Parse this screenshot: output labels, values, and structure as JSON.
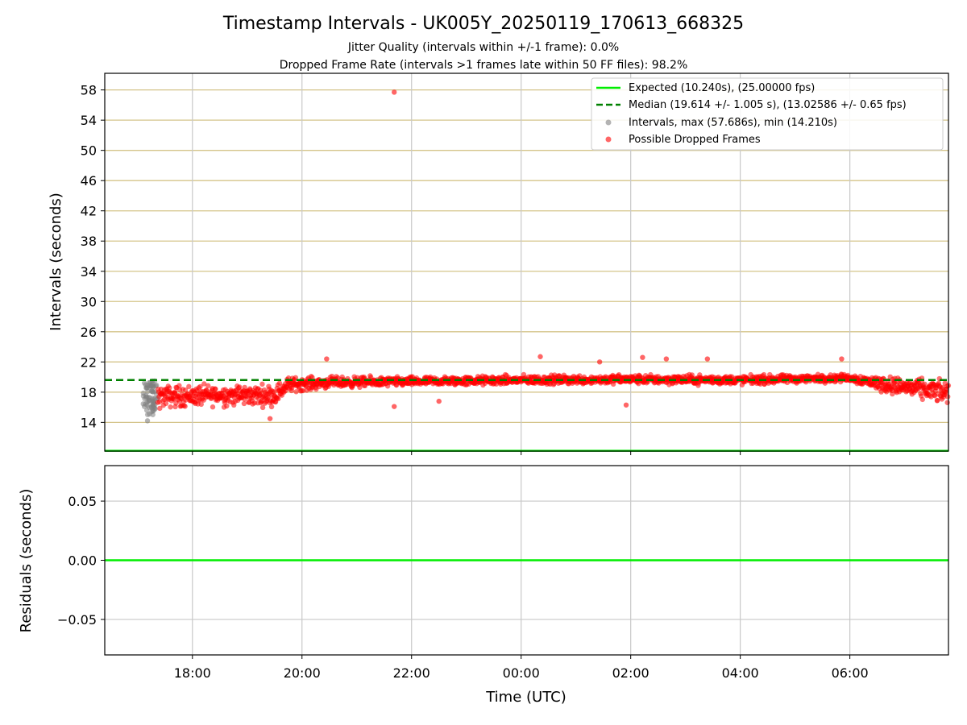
{
  "chart_data": [
    {
      "type": "scatter",
      "title": "Timestamp Intervals - UK005Y_20250119_170613_668325",
      "subtitle_lines": [
        "Jitter Quality (intervals within +/-1 frame): 0.0%",
        "Dropped Frame Rate (intervals >1 frames late within 50 FF files): 98.2%"
      ],
      "xlabel": "",
      "ylabel": "Intervals (seconds)",
      "xlim": [
        "2025-01-19 16:24",
        "2025-01-20 07:48"
      ],
      "ylim": [
        10.2,
        60.2
      ],
      "yticks": [
        14,
        18,
        22,
        26,
        30,
        34,
        38,
        42,
        46,
        50,
        54,
        58
      ],
      "xticks": [
        "18:00",
        "20:00",
        "22:00",
        "00:00",
        "02:00",
        "04:00",
        "06:00"
      ],
      "grid": true,
      "legend_position": "top-right",
      "series": [
        {
          "name": "Expected (10.240s), (25.00000 fps)",
          "kind": "hline",
          "y": 10.24,
          "color": "#00ee00",
          "style": "solid"
        },
        {
          "name": "Median (19.614 +/- 1.005 s), (13.02586 +/- 0.65 fps)",
          "kind": "hline",
          "y": 19.614,
          "color": "#008000",
          "style": "dashed"
        },
        {
          "name": "Intervals, max (57.686s), min (14.210s)",
          "kind": "scatter",
          "color": "#808080",
          "x_range": [
            "2025-01-19 17:06",
            "2025-01-19 17:22"
          ],
          "y_min": 14.21,
          "y_typical": [
            15.0,
            19.5
          ]
        },
        {
          "name": "Possible Dropped Frames",
          "kind": "scatter",
          "color": "#ff0000",
          "x_range": [
            "2025-01-19 17:22",
            "2025-01-20 07:48"
          ],
          "trend": [
            {
              "x": "2025-01-19 17:22",
              "y": 17.4,
              "spread": 1.2
            },
            {
              "x": "2025-01-19 18:30",
              "y": 17.6,
              "spread": 1.1
            },
            {
              "x": "2025-01-19 19:30",
              "y": 17.6,
              "spread": 1.1
            },
            {
              "x": "2025-01-19 19:45",
              "y": 19.0,
              "spread": 0.8
            },
            {
              "x": "2025-01-19 20:30",
              "y": 19.3,
              "spread": 0.6
            },
            {
              "x": "2025-01-19 22:00",
              "y": 19.4,
              "spread": 0.5
            },
            {
              "x": "2025-01-20 00:00",
              "y": 19.6,
              "spread": 0.5
            },
            {
              "x": "2025-01-20 02:00",
              "y": 19.7,
              "spread": 0.5
            },
            {
              "x": "2025-01-20 04:00",
              "y": 19.6,
              "spread": 0.5
            },
            {
              "x": "2025-01-20 06:00",
              "y": 19.9,
              "spread": 0.4
            },
            {
              "x": "2025-01-20 06:40",
              "y": 19.0,
              "spread": 0.9
            },
            {
              "x": "2025-01-20 07:48",
              "y": 17.9,
              "spread": 1.2
            }
          ],
          "outliers": [
            {
              "x": "2025-01-19 21:41",
              "y": 57.7
            },
            {
              "x": "2025-01-19 20:27",
              "y": 22.4
            },
            {
              "x": "2025-01-20 00:21",
              "y": 22.7
            },
            {
              "x": "2025-01-20 01:26",
              "y": 22.0
            },
            {
              "x": "2025-01-20 02:13",
              "y": 22.6
            },
            {
              "x": "2025-01-20 02:39",
              "y": 22.4
            },
            {
              "x": "2025-01-20 03:24",
              "y": 22.4
            },
            {
              "x": "2025-01-20 05:51",
              "y": 22.4
            },
            {
              "x": "2025-01-19 19:25",
              "y": 14.5
            },
            {
              "x": "2025-01-19 21:41",
              "y": 16.1
            },
            {
              "x": "2025-01-19 22:30",
              "y": 16.8
            },
            {
              "x": "2025-01-20 01:55",
              "y": 16.3
            }
          ]
        }
      ]
    },
    {
      "type": "line",
      "xlabel": "Time (UTC)",
      "ylabel": "Residuals (seconds)",
      "ylim": [
        -0.08,
        0.08
      ],
      "yticks": [
        0.05,
        0.0,
        -0.05
      ],
      "ytick_labels": [
        "0.05",
        "0.00",
        "−0.05"
      ],
      "xticks": [
        "18:00",
        "20:00",
        "22:00",
        "00:00",
        "02:00",
        "04:00",
        "06:00"
      ],
      "grid": true,
      "series": [
        {
          "kind": "hline",
          "y": 0.0,
          "color": "#00ee00",
          "style": "solid"
        }
      ]
    }
  ]
}
